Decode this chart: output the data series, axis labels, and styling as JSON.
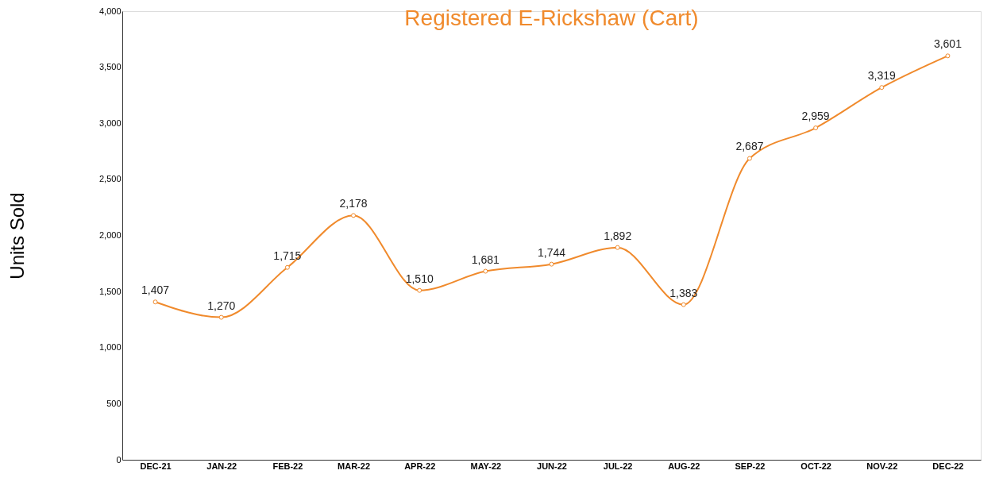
{
  "chart_data": {
    "type": "line",
    "title": "Registered E-Rickshaw (Cart)",
    "ylabel": "Units Sold",
    "categories": [
      "DEC-21",
      "JAN-22",
      "FEB-22",
      "MAR-22",
      "APR-22",
      "MAY-22",
      "JUN-22",
      "JUL-22",
      "AUG-22",
      "SEP-22",
      "OCT-22",
      "NOV-22",
      "DEC-22"
    ],
    "series": [
      {
        "color": "#f08a2c",
        "values": [
          1407,
          1270,
          1715,
          2178,
          1510,
          1681,
          1744,
          1892,
          1383,
          2687,
          2959,
          3319,
          3601
        ],
        "value_labels": [
          "1,407",
          "1,270",
          "1,715",
          "2,178",
          "1,510",
          "1,681",
          "1,744",
          "1,892",
          "1,383",
          "2,687",
          "2,959",
          "3,319",
          "3,601"
        ]
      }
    ],
    "ylim": [
      0,
      4000
    ],
    "yticks": [
      {
        "value": 0,
        "label": "0"
      },
      {
        "value": 500,
        "label": "500"
      },
      {
        "value": 1000,
        "label": "1,000"
      },
      {
        "value": 1500,
        "label": "1,500"
      },
      {
        "value": 2000,
        "label": "2,000"
      },
      {
        "value": 2500,
        "label": "2,500"
      },
      {
        "value": 3000,
        "label": "3,000"
      },
      {
        "value": 3500,
        "label": "3,500"
      },
      {
        "value": 4000,
        "label": "4,000"
      }
    ],
    "grid": false,
    "marker": "circle",
    "line_style": "solid"
  }
}
